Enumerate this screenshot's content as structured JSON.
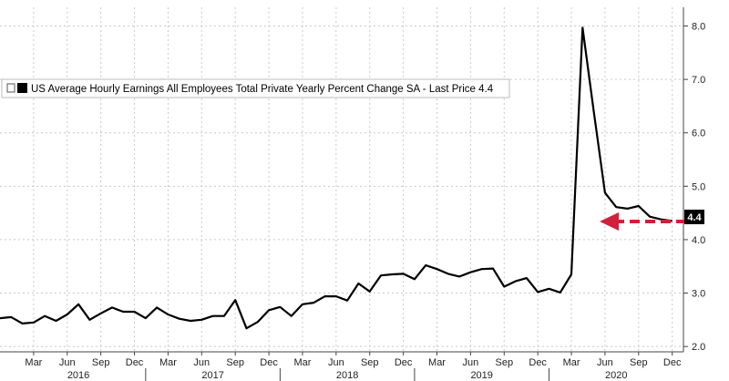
{
  "legend": {
    "label": "US Average Hourly Earnings All Employees Total Private Yearly Percent Change SA - Last Price 4.4"
  },
  "last_price": "4.4",
  "colors": {
    "series": "#000000",
    "arrow": "#d3203a",
    "grid": "#c9c9c9"
  },
  "chart_data": {
    "type": "line",
    "title": "",
    "xlabel": "",
    "ylabel": "",
    "ylim": [
      1.9,
      8.35
    ],
    "y_ticks": [
      "2.0",
      "3.0",
      "4.0",
      "5.0",
      "6.0",
      "7.0",
      "8.0"
    ],
    "grid": true,
    "x_tick_labels": [
      {
        "label": "Mar",
        "date": "2016-03"
      },
      {
        "label": "Jun",
        "date": "2016-06"
      },
      {
        "label": "Sep",
        "date": "2016-09"
      },
      {
        "label": "Dec",
        "date": "2016-12"
      },
      {
        "label": "Mar",
        "date": "2017-03"
      },
      {
        "label": "Jun",
        "date": "2017-06"
      },
      {
        "label": "Sep",
        "date": "2017-09"
      },
      {
        "label": "Dec",
        "date": "2017-12"
      },
      {
        "label": "Mar",
        "date": "2018-03"
      },
      {
        "label": "Jun",
        "date": "2018-06"
      },
      {
        "label": "Sep",
        "date": "2018-09"
      },
      {
        "label": "Dec",
        "date": "2018-12"
      },
      {
        "label": "Mar",
        "date": "2019-03"
      },
      {
        "label": "Jun",
        "date": "2019-06"
      },
      {
        "label": "Sep",
        "date": "2019-09"
      },
      {
        "label": "Dec",
        "date": "2019-12"
      },
      {
        "label": "Mar",
        "date": "2020-03"
      },
      {
        "label": "Jun",
        "date": "2020-06"
      },
      {
        "label": "Sep",
        "date": "2020-09"
      },
      {
        "label": "Dec",
        "date": "2020-12"
      }
    ],
    "year_labels": [
      {
        "label": "2016",
        "date": "2016-07"
      },
      {
        "label": "2017",
        "date": "2017-07"
      },
      {
        "label": "2018",
        "date": "2018-07"
      },
      {
        "label": "2019",
        "date": "2019-07"
      },
      {
        "label": "2020",
        "date": "2020-07"
      }
    ],
    "xlim": [
      "2015-12",
      "2021-01"
    ],
    "series": [
      {
        "name": "US Average Hourly Earnings All Employees Total Private Yearly Percent Change SA",
        "x": [
          "2015-12",
          "2016-01",
          "2016-02",
          "2016-03",
          "2016-04",
          "2016-05",
          "2016-06",
          "2016-07",
          "2016-08",
          "2016-09",
          "2016-10",
          "2016-11",
          "2016-12",
          "2017-01",
          "2017-02",
          "2017-03",
          "2017-04",
          "2017-05",
          "2017-06",
          "2017-07",
          "2017-08",
          "2017-09",
          "2017-10",
          "2017-11",
          "2017-12",
          "2018-01",
          "2018-02",
          "2018-03",
          "2018-04",
          "2018-05",
          "2018-06",
          "2018-07",
          "2018-08",
          "2018-09",
          "2018-10",
          "2018-11",
          "2018-12",
          "2019-01",
          "2019-02",
          "2019-03",
          "2019-04",
          "2019-05",
          "2019-06",
          "2019-07",
          "2019-08",
          "2019-09",
          "2019-10",
          "2019-11",
          "2019-12",
          "2020-01",
          "2020-02",
          "2020-03",
          "2020-04",
          "2020-05",
          "2020-06",
          "2020-07",
          "2020-08",
          "2020-09",
          "2020-10",
          "2020-11",
          "2020-12"
        ],
        "values": [
          2.53,
          2.55,
          2.43,
          2.45,
          2.57,
          2.48,
          2.6,
          2.79,
          2.5,
          2.62,
          2.73,
          2.65,
          2.65,
          2.53,
          2.73,
          2.6,
          2.52,
          2.48,
          2.5,
          2.57,
          2.57,
          2.87,
          2.34,
          2.46,
          2.68,
          2.74,
          2.57,
          2.79,
          2.82,
          2.94,
          2.94,
          2.86,
          3.18,
          3.03,
          3.33,
          3.35,
          3.36,
          3.26,
          3.52,
          3.45,
          3.36,
          3.31,
          3.39,
          3.45,
          3.46,
          3.12,
          3.22,
          3.28,
          3.02,
          3.08,
          3.01,
          3.35,
          7.97,
          6.4,
          4.88,
          4.61,
          4.58,
          4.63,
          4.43,
          4.38,
          4.35
        ]
      }
    ]
  }
}
